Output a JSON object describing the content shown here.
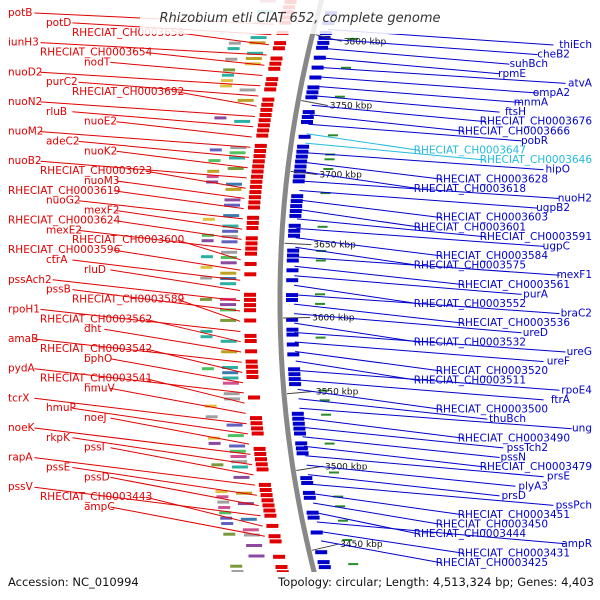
{
  "title": "Rhizobium etli CIAT 652, complete genome",
  "footer": {
    "accession": "Accession: NC_010994",
    "topology": "Topology: circular; Length: 4,513,324 bp; Genes: 4,403"
  },
  "colors": {
    "forward": "#e00000",
    "reverse": "#0000cc",
    "rna": "#22bbdd",
    "backbone": "#888888",
    "tick": "#2a8a2a"
  },
  "kbp_marks": [
    "3800 kbp",
    "3750 kbp",
    "3700 kbp",
    "3650 kbp",
    "3600 kbp",
    "3550 kbp",
    "3500 kbp",
    "3450 kbp"
  ],
  "left_labels": [
    "potB",
    "potD",
    "RHECIAT_CH0003658",
    "iunH3",
    "RHECIAT_CH0003654",
    "nodT",
    "nuoD2",
    "purC2",
    "RHECIAT_CH0003692",
    "nuoN2",
    "rluB",
    "nuoE2",
    "nuoM2",
    "adeC2",
    "nuoK2",
    "nuoB2",
    "RHECIAT_CH0003623",
    "nuoM3",
    "RHECIAT_CH0003619",
    "nuoG2",
    "mexF2",
    "RHECIAT_CH0003624",
    "mexE2",
    "RHECIAT_CH0003600",
    "RHECIAT_CH0003596",
    "ctrA",
    "rluD",
    "pssAch2",
    "pssB",
    "RHECIAT_CH0003589",
    "rpoH1",
    "RHECIAT_CH0003562",
    "dht",
    "amaB",
    "RHECIAT_CH0003542",
    "bphO",
    "pydA",
    "RHECIAT_CH0003541",
    "hmuV",
    "tcrX",
    "hmuP",
    "noeJ",
    "noeK",
    "rkpK",
    "pssI",
    "rapA",
    "pssE",
    "pssD",
    "pssV",
    "RHECIAT_CH0003443",
    "ampC"
  ],
  "right_labels": [
    "thiEch",
    "cheB2",
    "suhBch",
    "rpmE",
    "atvA",
    "ompA2",
    "mnmA",
    "ftsH",
    "RHECIAT_CH0003676",
    "RHECIAT_CH0003666",
    "pobR",
    "RHECIAT_CH0003647",
    "RHECIAT_CH0003646",
    "hipO",
    "RHECIAT_CH0003628",
    "RHECIAT_CH0003618",
    "nuoH2",
    "ugpB2",
    "RHECIAT_CH0003603",
    "RHECIAT_CH0003601",
    "RHECIAT_CH0003591",
    "ugpC",
    "RHECIAT_CH0003584",
    "RHECIAT_CH0003575",
    "mexF1",
    "RHECIAT_CH0003561",
    "purA",
    "RHECIAT_CH0003552",
    "braC2",
    "RHECIAT_CH0003536",
    "ureD",
    "RHECIAT_CH0003532",
    "ureG",
    "ureF",
    "RHECIAT_CH0003520",
    "RHECIAT_CH0003511",
    "rpoE4",
    "ftrA",
    "RHECIAT_CH0003500",
    "thuBch",
    "ung",
    "RHECIAT_CH0003490",
    "pssTch2",
    "pssN",
    "RHECIAT_CH0003479",
    "prsE",
    "plyA3",
    "prsD",
    "pssPch",
    "RHECIAT_CH0003451",
    "RHECIAT_CH0003450",
    "RHECIAT_CH0003444",
    "ampR",
    "RHECIAT_CH0003431",
    "RHECIAT_CH0003425"
  ],
  "cyan_labels": [
    "RHECIAT_CH0003647",
    "RHECIAT_CH0003646"
  ]
}
